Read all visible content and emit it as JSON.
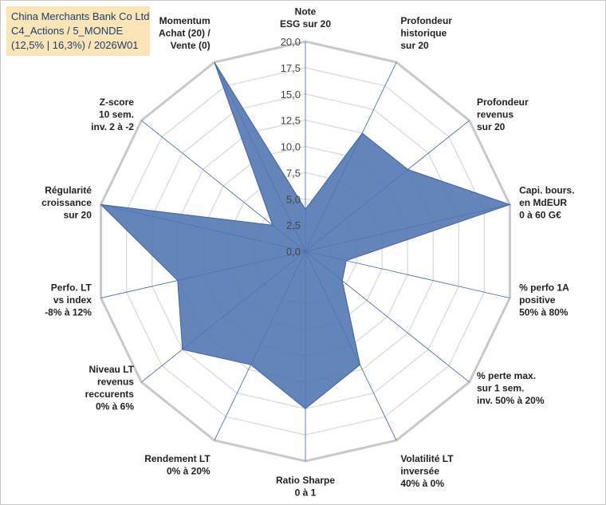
{
  "info_box": {
    "line1": "China Merchants Bank Co Ltd",
    "line2": "C4_Actions / 5_MONDE",
    "line3": "(12,5% | 16,3%) / 2026W01"
  },
  "colors": {
    "fill": "#4f74b0",
    "stroke": "#3d62a8",
    "grid": "#d9d9d9",
    "axis": "#3d62a8",
    "info_bg": "#fbe5b6",
    "info_text": "#1f3b70"
  },
  "chart_data": {
    "type": "radar",
    "ylim": [
      0,
      20
    ],
    "ticks": [
      "0,0",
      "2,5",
      "5,0",
      "7,5",
      "10,0",
      "12,5",
      "15,0",
      "17,5",
      "20,0"
    ],
    "grid": true,
    "axes": [
      {
        "label": [
          "Note",
          "ESG sur 20"
        ],
        "value": 4.0
      },
      {
        "label": [
          "Profondeur",
          "historique",
          "sur 20"
        ],
        "value": 12.5
      },
      {
        "label": [
          "Profondeur",
          "revenus",
          "sur 20"
        ],
        "value": 12.5
      },
      {
        "label": [
          "Capi. bours.",
          "en MdEUR",
          "0 à 60 G€"
        ],
        "value": 20.0
      },
      {
        "label": [
          "% perfo 1A",
          "positive",
          "50% à 80%"
        ],
        "value": 4.0
      },
      {
        "label": [
          "% perte max.",
          "sur 1 sem.",
          "inv. 50% à 20%"
        ],
        "value": 4.5
      },
      {
        "label": [
          "Volatilité LT",
          "inversée",
          "40% à 0%"
        ],
        "value": 12.0
      },
      {
        "label": [
          "Ratio Sharpe",
          "0 à 1"
        ],
        "value": 15.0
      },
      {
        "label": [
          "Rendement LT",
          "0% à 20%"
        ],
        "value": 12.0
      },
      {
        "label": [
          "Niveau LT",
          "revenus",
          "reccurents",
          "0% à 6%"
        ],
        "value": 15.0
      },
      {
        "label": [
          "Perfo. LT",
          "vs index",
          "-8% à 12%"
        ],
        "value": 12.5
      },
      {
        "label": [
          "Régularité",
          "croissance",
          "sur 20"
        ],
        "value": 20.0
      },
      {
        "label": [
          "Z-score",
          "10 sem.",
          "inv. 2 à -2"
        ],
        "value": 4.0
      },
      {
        "label": [
          "Momentum",
          "Achat (20) /",
          "Vente (0)"
        ],
        "value": 20.0
      }
    ]
  }
}
